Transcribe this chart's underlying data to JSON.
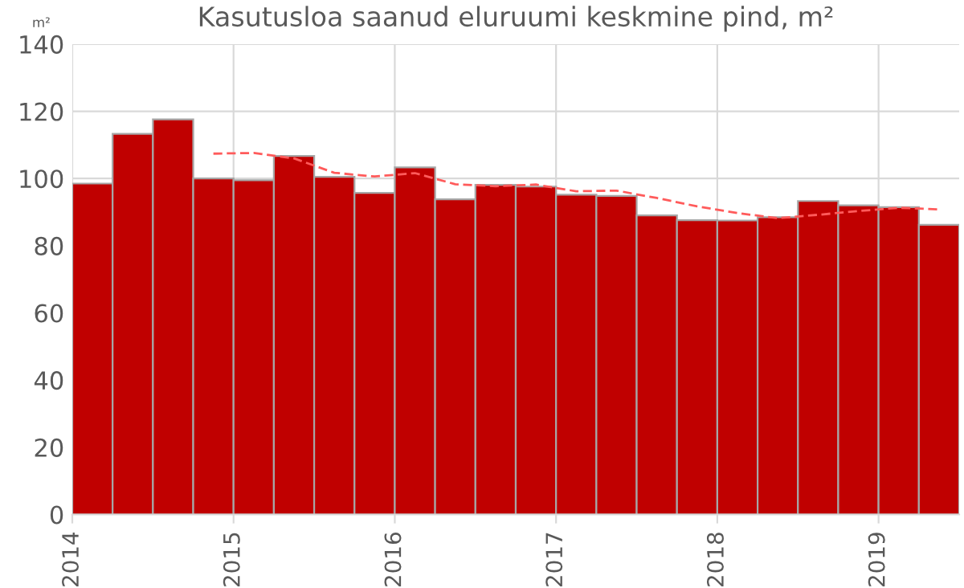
{
  "chart_data": {
    "type": "bar",
    "title": "Kasutusloa saanud eluruumi keskmine pind, m²",
    "ylabel": "m²",
    "xlim": [
      2014,
      2019.5
    ],
    "xticks": [
      2014,
      2015,
      2016,
      2017,
      2018,
      2019
    ],
    "ylim": [
      0,
      140
    ],
    "yticks": [
      0,
      20,
      40,
      60,
      80,
      100,
      120,
      140
    ],
    "grid": true,
    "series": [
      {
        "color": "#c00000",
        "x": [
          2014.125,
          2014.375,
          2014.625,
          2014.875,
          2015.125,
          2015.375,
          2015.625,
          2015.875,
          2016.125,
          2016.375,
          2016.625,
          2016.875,
          2017.125,
          2017.375,
          2017.625,
          2017.875,
          2018.125,
          2018.375,
          2018.625,
          2018.875,
          2019.125,
          2019.375
        ],
        "values": [
          98.5,
          113.3,
          117.6,
          100,
          99.5,
          106.7,
          100.5,
          95.7,
          103.3,
          93.8,
          98.1,
          97.6,
          95.2,
          94.8,
          89,
          87.6,
          87.5,
          88.5,
          93.3,
          92,
          91.5,
          86.2
        ]
      },
      {
        "type": "line",
        "color": "#ff5b5b",
        "line_style": "dashed",
        "marker": "none",
        "x": [
          2014.875,
          2015.125,
          2015.375,
          2015.625,
          2015.875,
          2016.125,
          2016.375,
          2016.625,
          2016.875,
          2017.125,
          2017.375,
          2017.625,
          2017.875,
          2018.125,
          2018.375,
          2018.625,
          2018.875,
          2019.125,
          2019.375
        ],
        "values": [
          107.4,
          107.6,
          106,
          101.7,
          100.6,
          101.6,
          98.3,
          97.7,
          98.2,
          96.2,
          96.4,
          94.2,
          91.7,
          89.7,
          88.2,
          89.2,
          90.3,
          91.3,
          90.8
        ]
      }
    ]
  }
}
